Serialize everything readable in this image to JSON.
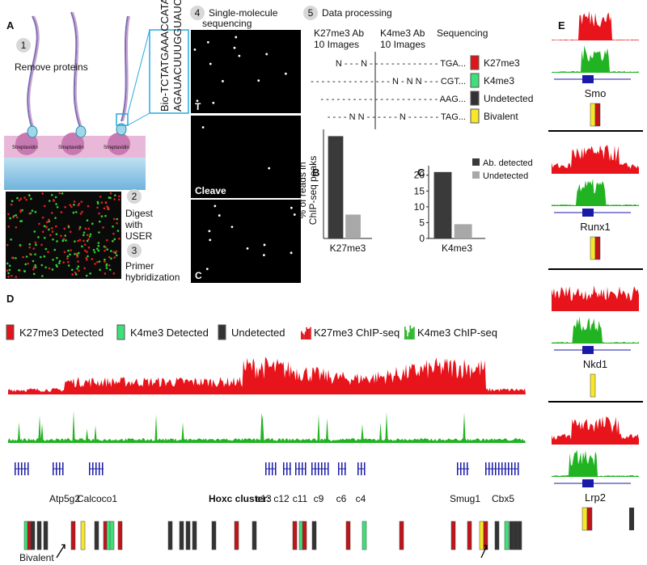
{
  "panel_a": {
    "label": "A",
    "step1_num": "1",
    "step1": "Remove proteins",
    "streptavidin": [
      "Streptavidin",
      "Streptavidin",
      "Streptavidin"
    ],
    "seq_top": "Bio-TCTATGAAACCATAGCA...",
    "seq_bottom": "AGAUACUUUGGUAUCGU...",
    "step2_num": "2",
    "step2": [
      "Digest",
      "with",
      "USER"
    ],
    "step3_num": "3",
    "step3": [
      "Primer",
      "hybridization"
    ],
    "step4_num": "4",
    "step4": [
      "Single-molecule",
      "sequencing"
    ],
    "img_labels": [
      "T",
      "Cleave",
      "C"
    ],
    "step5_num": "5",
    "step5": "Data processing",
    "headers": [
      [
        "K27me3 Ab",
        "10 Images"
      ],
      [
        "K4me3 Ab",
        "10 Images"
      ],
      [
        "Sequencing"
      ]
    ],
    "rows": [
      "N - - - N - - - - - - - - - - - - - TGA...",
      "- - - - - - - - - - - - - - - N - N N - - - CGT...",
      "- - - - - - - - - - - - - - - - - - - - - - AAG...",
      "- - - - N N - - - - - - N - - - - - - TAG..."
    ],
    "row_legend": [
      {
        "name": "K27me3",
        "color": "#e0151b"
      },
      {
        "name": "K4me3",
        "color": "#3ee07a"
      },
      {
        "name": "Undetected",
        "color": "#333333"
      },
      {
        "name": "Bivalent",
        "color": "#f7e62a"
      }
    ]
  },
  "chart_data": [
    {
      "type": "bar",
      "title": "B",
      "ylabel": [
        "% of reads in",
        "ChIP-seq peaks"
      ],
      "categories": [
        "K27me3"
      ],
      "ylim": [
        0,
        32
      ],
      "series": [
        {
          "color": "#3a3a3a",
          "values": [
            30
          ]
        },
        {
          "color": "#a8a8a8",
          "values": [
            7
          ]
        }
      ]
    },
    {
      "type": "bar",
      "title": "C",
      "categories": [
        "K4me3"
      ],
      "ylim": [
        0,
        23
      ],
      "yticks": [
        0,
        5,
        10,
        15,
        20
      ],
      "series": [
        {
          "name": "Ab. detected",
          "color": "#3a3a3a",
          "values": [
            21
          ]
        },
        {
          "name": "Undetected",
          "color": "#a8a8a8",
          "values": [
            4.5
          ]
        }
      ]
    }
  ],
  "panel_d": {
    "label": "D",
    "legend": [
      {
        "name": "K27me3 Detected",
        "color": "#e0151b"
      },
      {
        "name": "K4me3 Detected",
        "color": "#3ee07a"
      },
      {
        "name": "Undetected",
        "color": "#333333"
      },
      {
        "name": "K27me3 ChIP-seq",
        "color": "#e0151b"
      },
      {
        "name": "K4me3 ChIP-seq",
        "color": "#2fb52f"
      }
    ],
    "genes": [
      "Atp5g2",
      "Calcoco1",
      "Smug1",
      "Cbx5"
    ],
    "hoxc_title": "Hoxc cluster:",
    "hoxc": [
      "c13",
      "c12",
      "c11",
      "c9",
      "c6",
      "c4"
    ],
    "bivalent": "Bivalent"
  },
  "panel_e": {
    "label": "E",
    "genes": [
      "Smo",
      "Runx1",
      "Nkd1",
      "Lrp2"
    ]
  }
}
